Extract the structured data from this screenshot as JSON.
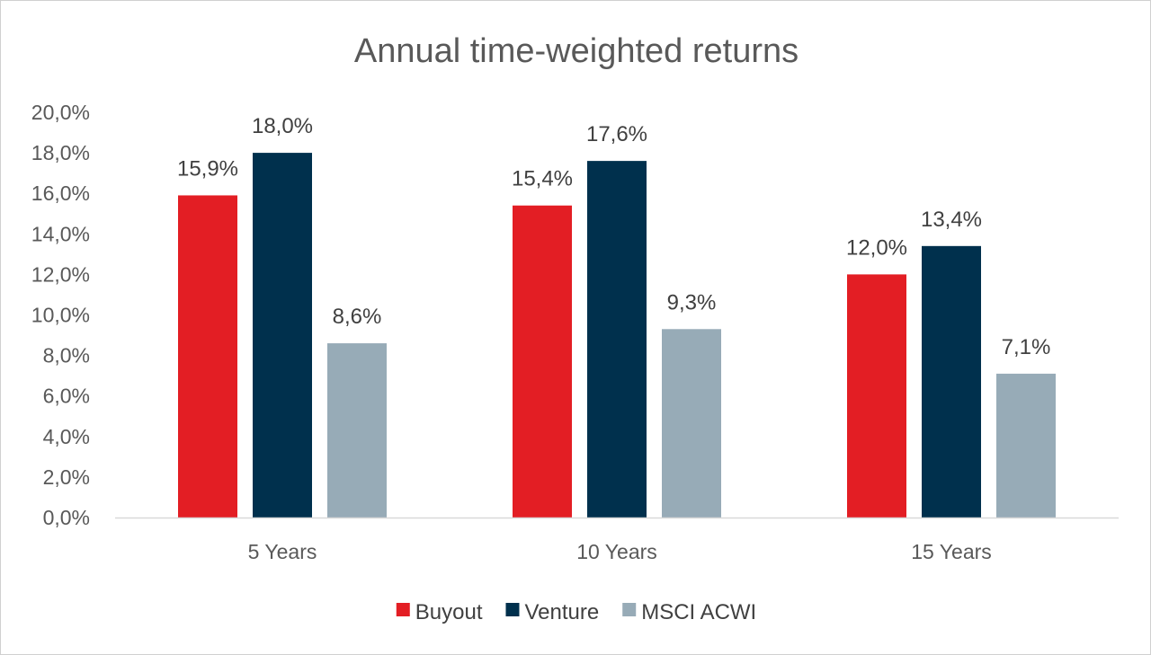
{
  "chart_data": {
    "type": "bar",
    "title": "Annual time-weighted returns",
    "categories": [
      "5 Years",
      "10 Years",
      "15 Years"
    ],
    "series": [
      {
        "name": "Buyout",
        "values": [
          15.9,
          15.4,
          12.0
        ],
        "color": "#e31e24"
      },
      {
        "name": "Venture",
        "values": [
          18.0,
          17.6,
          13.4
        ],
        "color": "#00304d"
      },
      {
        "name": "MSCI ACWI",
        "values": [
          8.6,
          9.3,
          7.1
        ],
        "color": "#97abb7"
      }
    ],
    "data_labels": [
      [
        "15,9%",
        "18,0%",
        "8,6%"
      ],
      [
        "15,4%",
        "17,6%",
        "9,3%"
      ],
      [
        "12,0%",
        "13,4%",
        "7,1%"
      ]
    ],
    "y_ticks": [
      0,
      2,
      4,
      6,
      8,
      10,
      12,
      14,
      16,
      18,
      20
    ],
    "y_tick_labels": [
      "0,0%",
      "2,0%",
      "4,0%",
      "6,0%",
      "8,0%",
      "10,0%",
      "12,0%",
      "14,0%",
      "16,0%",
      "18,0%",
      "20,0%"
    ],
    "ylim": [
      0,
      20
    ],
    "grid": false,
    "legend_position": "bottom",
    "xlabel": "",
    "ylabel": ""
  }
}
